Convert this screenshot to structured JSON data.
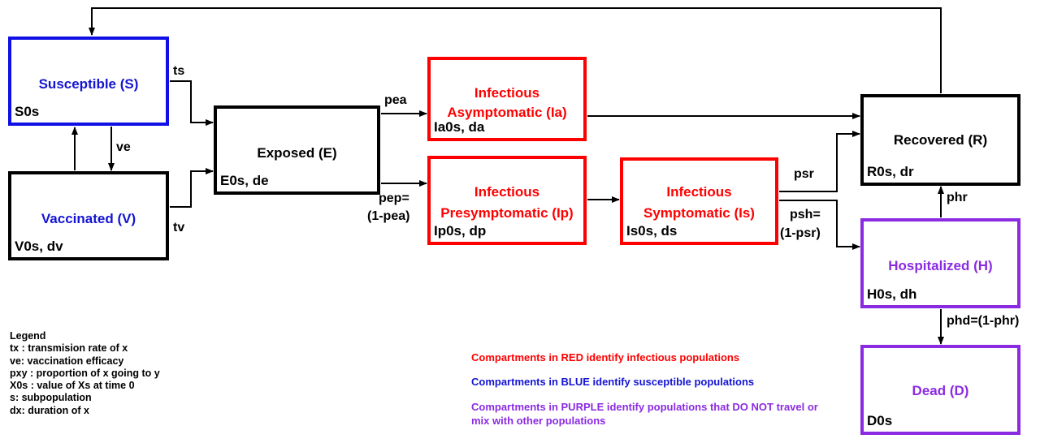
{
  "compartments": {
    "susceptible": {
      "title": "Susceptible (S)",
      "params": "S0s",
      "color": "#1010e6"
    },
    "vaccinated": {
      "title": "Vaccinated (V)",
      "params": "V0s, dv",
      "color": "#1010e6"
    },
    "exposed": {
      "title": "Exposed (E)",
      "params": "E0s, de",
      "color": "#000000"
    },
    "asymptomatic": {
      "title_line1": "Infectious",
      "title_line2": "Asymptomatic (Ia)",
      "params": "Ia0s, da",
      "color": "#ff0000"
    },
    "presymptomatic": {
      "title_line1": "Infectious",
      "title_line2": "Presymptomatic (Ip)",
      "params": "Ip0s, dp",
      "color": "#ff0000"
    },
    "symptomatic": {
      "title_line1": "Infectious",
      "title_line2": "Symptomatic (Is)",
      "params": "Is0s, ds",
      "color": "#ff0000"
    },
    "recovered": {
      "title": "Recovered (R)",
      "params": "R0s, dr",
      "color": "#000000"
    },
    "hospitalized": {
      "title": "Hospitalized (H)",
      "params": "H0s, dh",
      "color": "#8a2be2"
    },
    "dead": {
      "title": "Dead (D)",
      "params": "D0s",
      "color": "#8a2be2"
    }
  },
  "edge_labels": {
    "ts": "ts",
    "ve": "ve",
    "tv": "tv",
    "pea": "pea",
    "pep_line1": "pep=",
    "pep_line2": "(1-pea)",
    "psr": "psr",
    "psh_line1": "psh=",
    "psh_line2": "(1-psr)",
    "phr": "phr",
    "phd": "phd=(1-phr)"
  },
  "legend": {
    "title": "Legend",
    "items": [
      "tx : transmision rate of x",
      "ve: vaccination efficacy",
      "pxy : proportion of x going to y",
      "X0s : value of Xs at time 0",
      "s: subpopulation",
      "dx: duration of x"
    ]
  },
  "notes": {
    "red": "Compartments in RED identify infectious populations",
    "blue": "Compartments in BLUE identify susceptible populations",
    "purple": "Compartments in PURPLE identify populations that DO NOT travel or mix with other populations"
  }
}
